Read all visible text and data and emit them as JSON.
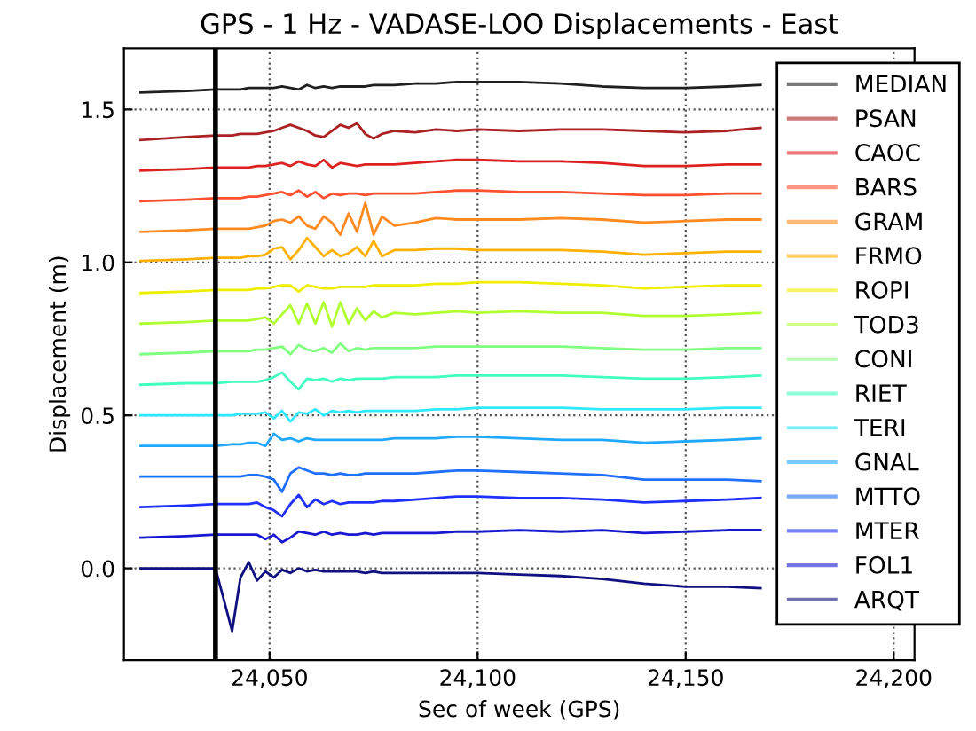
{
  "chart_data": {
    "type": "line",
    "title": "GPS - 1 Hz - VADASE-LOO Displacements - East",
    "xlabel": "Sec of week (GPS)",
    "ylabel": "Displacement (m)",
    "x": [
      24019,
      24030,
      24037,
      24041,
      24043,
      24045,
      24047,
      24049,
      24051,
      24053,
      24055,
      24057,
      24059,
      24061,
      24063,
      24065,
      24067,
      24069,
      24071,
      24073,
      24075,
      24077,
      24080,
      24085,
      24090,
      24095,
      24100,
      24110,
      24120,
      24130,
      24140,
      24150,
      24160,
      24168
    ],
    "series": [
      {
        "name": "MEDIAN",
        "color": "#202020",
        "values": [
          1.555,
          1.56,
          1.565,
          1.565,
          1.565,
          1.57,
          1.57,
          1.57,
          1.57,
          1.575,
          1.57,
          1.565,
          1.58,
          1.57,
          1.575,
          1.57,
          1.575,
          1.575,
          1.575,
          1.575,
          1.58,
          1.58,
          1.58,
          1.585,
          1.585,
          1.59,
          1.59,
          1.59,
          1.585,
          1.575,
          1.57,
          1.57,
          1.575,
          1.58
        ]
      },
      {
        "name": "PSAN",
        "color": "#aa2222",
        "values": [
          1.4,
          1.41,
          1.415,
          1.415,
          1.42,
          1.42,
          1.42,
          1.425,
          1.43,
          1.44,
          1.45,
          1.44,
          1.43,
          1.415,
          1.41,
          1.43,
          1.45,
          1.44,
          1.455,
          1.42,
          1.405,
          1.42,
          1.43,
          1.425,
          1.435,
          1.43,
          1.435,
          1.43,
          1.435,
          1.435,
          1.43,
          1.425,
          1.43,
          1.44
        ]
      },
      {
        "name": "CAOC",
        "color": "#dd2020",
        "values": [
          1.3,
          1.305,
          1.31,
          1.31,
          1.31,
          1.31,
          1.315,
          1.315,
          1.32,
          1.325,
          1.315,
          1.33,
          1.32,
          1.315,
          1.335,
          1.31,
          1.325,
          1.32,
          1.315,
          1.32,
          1.32,
          1.32,
          1.32,
          1.325,
          1.33,
          1.335,
          1.335,
          1.33,
          1.33,
          1.325,
          1.315,
          1.315,
          1.32,
          1.32
        ]
      },
      {
        "name": "BARS",
        "color": "#ff5030",
        "values": [
          1.2,
          1.205,
          1.21,
          1.21,
          1.21,
          1.215,
          1.215,
          1.22,
          1.225,
          1.23,
          1.22,
          1.235,
          1.215,
          1.23,
          1.21,
          1.225,
          1.22,
          1.225,
          1.225,
          1.22,
          1.225,
          1.225,
          1.225,
          1.225,
          1.23,
          1.235,
          1.235,
          1.23,
          1.23,
          1.225,
          1.22,
          1.22,
          1.225,
          1.225
        ]
      },
      {
        "name": "GRAM",
        "color": "#ff8a20",
        "values": [
          1.1,
          1.105,
          1.11,
          1.11,
          1.11,
          1.11,
          1.115,
          1.12,
          1.135,
          1.14,
          1.13,
          1.15,
          1.12,
          1.11,
          1.15,
          1.13,
          1.09,
          1.16,
          1.1,
          1.195,
          1.09,
          1.15,
          1.12,
          1.13,
          1.145,
          1.14,
          1.14,
          1.14,
          1.145,
          1.14,
          1.13,
          1.135,
          1.14,
          1.14
        ]
      },
      {
        "name": "FRMO",
        "color": "#ffb000",
        "values": [
          1.005,
          1.01,
          1.015,
          1.015,
          1.015,
          1.02,
          1.02,
          1.025,
          1.045,
          1.05,
          1.01,
          1.04,
          1.08,
          1.05,
          1.02,
          1.04,
          1.02,
          1.03,
          1.05,
          1.02,
          1.07,
          1.02,
          1.04,
          1.04,
          1.045,
          1.045,
          1.04,
          1.04,
          1.04,
          1.035,
          1.025,
          1.03,
          1.035,
          1.035
        ]
      },
      {
        "name": "ROPI",
        "color": "#eeee00",
        "values": [
          0.9,
          0.905,
          0.91,
          0.91,
          0.91,
          0.91,
          0.915,
          0.915,
          0.92,
          0.925,
          0.925,
          0.905,
          0.925,
          0.92,
          0.915,
          0.915,
          0.92,
          0.92,
          0.92,
          0.92,
          0.925,
          0.925,
          0.925,
          0.925,
          0.93,
          0.93,
          0.935,
          0.935,
          0.93,
          0.925,
          0.915,
          0.92,
          0.925,
          0.925
        ]
      },
      {
        "name": "TOD3",
        "color": "#b0ff30",
        "values": [
          0.8,
          0.805,
          0.81,
          0.81,
          0.81,
          0.81,
          0.815,
          0.82,
          0.8,
          0.83,
          0.86,
          0.8,
          0.865,
          0.8,
          0.87,
          0.79,
          0.87,
          0.8,
          0.85,
          0.81,
          0.84,
          0.82,
          0.835,
          0.83,
          0.835,
          0.84,
          0.835,
          0.84,
          0.835,
          0.835,
          0.825,
          0.825,
          0.83,
          0.835
        ]
      },
      {
        "name": "CONI",
        "color": "#80ff80",
        "values": [
          0.7,
          0.705,
          0.71,
          0.71,
          0.71,
          0.71,
          0.715,
          0.715,
          0.72,
          0.725,
          0.7,
          0.73,
          0.715,
          0.71,
          0.72,
          0.705,
          0.735,
          0.71,
          0.72,
          0.715,
          0.72,
          0.72,
          0.72,
          0.72,
          0.725,
          0.725,
          0.725,
          0.725,
          0.725,
          0.72,
          0.715,
          0.715,
          0.72,
          0.72
        ]
      },
      {
        "name": "RIET",
        "color": "#40ffc0",
        "values": [
          0.6,
          0.605,
          0.605,
          0.61,
          0.61,
          0.61,
          0.61,
          0.615,
          0.625,
          0.64,
          0.61,
          0.585,
          0.62,
          0.615,
          0.62,
          0.61,
          0.62,
          0.615,
          0.62,
          0.62,
          0.62,
          0.62,
          0.625,
          0.625,
          0.625,
          0.63,
          0.63,
          0.63,
          0.63,
          0.625,
          0.62,
          0.62,
          0.625,
          0.63
        ]
      },
      {
        "name": "TERI",
        "color": "#30e8ff",
        "values": [
          0.5,
          0.5,
          0.5,
          0.5,
          0.505,
          0.505,
          0.505,
          0.51,
          0.49,
          0.515,
          0.48,
          0.51,
          0.505,
          0.52,
          0.5,
          0.515,
          0.51,
          0.515,
          0.51,
          0.515,
          0.515,
          0.515,
          0.515,
          0.515,
          0.52,
          0.52,
          0.525,
          0.525,
          0.525,
          0.52,
          0.52,
          0.52,
          0.525,
          0.525
        ]
      },
      {
        "name": "GNAL",
        "color": "#20a8ff",
        "values": [
          0.4,
          0.4,
          0.4,
          0.405,
          0.405,
          0.41,
          0.41,
          0.4,
          0.44,
          0.42,
          0.425,
          0.415,
          0.425,
          0.42,
          0.42,
          0.42,
          0.42,
          0.42,
          0.42,
          0.42,
          0.42,
          0.42,
          0.425,
          0.425,
          0.425,
          0.43,
          0.43,
          0.425,
          0.42,
          0.42,
          0.41,
          0.415,
          0.42,
          0.425
        ]
      },
      {
        "name": "MTTO",
        "color": "#2070ff",
        "values": [
          0.3,
          0.3,
          0.3,
          0.3,
          0.3,
          0.305,
          0.305,
          0.3,
          0.29,
          0.25,
          0.31,
          0.33,
          0.32,
          0.31,
          0.31,
          0.305,
          0.31,
          0.305,
          0.305,
          0.31,
          0.31,
          0.31,
          0.31,
          0.31,
          0.315,
          0.32,
          0.32,
          0.315,
          0.31,
          0.305,
          0.29,
          0.29,
          0.29,
          0.285
        ]
      },
      {
        "name": "MTER",
        "color": "#2030ff",
        "values": [
          0.2,
          0.205,
          0.21,
          0.21,
          0.21,
          0.21,
          0.215,
          0.2,
          0.19,
          0.17,
          0.21,
          0.24,
          0.2,
          0.225,
          0.21,
          0.22,
          0.21,
          0.215,
          0.215,
          0.215,
          0.215,
          0.22,
          0.22,
          0.225,
          0.23,
          0.235,
          0.235,
          0.23,
          0.23,
          0.225,
          0.215,
          0.22,
          0.225,
          0.23
        ]
      },
      {
        "name": "FOL1",
        "color": "#1818d0",
        "values": [
          0.1,
          0.105,
          0.11,
          0.11,
          0.11,
          0.11,
          0.11,
          0.095,
          0.11,
          0.085,
          0.1,
          0.12,
          0.115,
          0.11,
          0.12,
          0.11,
          0.115,
          0.11,
          0.11,
          0.115,
          0.11,
          0.115,
          0.115,
          0.115,
          0.115,
          0.12,
          0.12,
          0.125,
          0.12,
          0.125,
          0.115,
          0.12,
          0.125,
          0.125
        ]
      },
      {
        "name": "ARQT",
        "color": "#101080",
        "values": [
          0.0,
          0.0,
          0.0,
          -0.205,
          -0.03,
          0.02,
          -0.04,
          -0.01,
          -0.03,
          -0.005,
          -0.015,
          0.0,
          -0.01,
          -0.005,
          -0.01,
          -0.01,
          -0.01,
          -0.01,
          -0.01,
          -0.015,
          -0.01,
          -0.015,
          -0.015,
          -0.015,
          -0.015,
          -0.015,
          -0.015,
          -0.02,
          -0.025,
          -0.035,
          -0.05,
          -0.06,
          -0.06,
          -0.065
        ]
      }
    ],
    "xlim": [
      24015,
      24205
    ],
    "xticks": [
      {
        "value": 24050,
        "label": "24,050"
      },
      {
        "value": 24100,
        "label": "24,100"
      },
      {
        "value": 24150,
        "label": "24,150"
      },
      {
        "value": 24200,
        "label": "24,200"
      }
    ],
    "ylim": [
      -0.3,
      1.7
    ],
    "yticks": [
      {
        "value": 0.0,
        "label": "0.0"
      },
      {
        "value": 0.5,
        "label": "0.5"
      },
      {
        "value": 1.0,
        "label": "1.0"
      },
      {
        "value": 1.5,
        "label": "1.5"
      }
    ],
    "ref_lines": [
      {
        "axis": "x",
        "value": 24037,
        "color": "#000000",
        "line_style": "solid"
      }
    ],
    "grid": true,
    "legend": "top right",
    "marker": "none",
    "line_style": "solid"
  }
}
